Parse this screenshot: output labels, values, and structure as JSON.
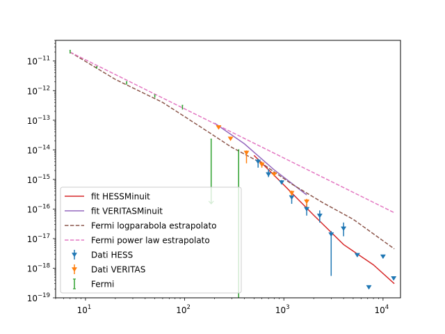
{
  "chart_data": {
    "type": "scatter",
    "title": "",
    "xlabel": "",
    "ylabel": "",
    "xscale": "log",
    "yscale": "log",
    "xlim": [
      5,
      15000
    ],
    "ylim": [
      1e-19,
      5e-11
    ],
    "x_ticks": [
      {
        "base": "10",
        "exp": "1"
      },
      {
        "base": "10",
        "exp": "2"
      },
      {
        "base": "10",
        "exp": "3"
      },
      {
        "base": "10",
        "exp": "4"
      }
    ],
    "y_ticks": [
      {
        "base": "10",
        "exp": "−11"
      },
      {
        "base": "10",
        "exp": "−12"
      },
      {
        "base": "10",
        "exp": "−13"
      },
      {
        "base": "10",
        "exp": "−14"
      },
      {
        "base": "10",
        "exp": "−15"
      },
      {
        "base": "10",
        "exp": "−16"
      },
      {
        "base": "10",
        "exp": "−17"
      },
      {
        "base": "10",
        "exp": "−18"
      },
      {
        "base": "10",
        "exp": "−19"
      }
    ],
    "grid": false,
    "legend_position": "lower-left",
    "lines": [
      {
        "name": "fit HESSMinuit",
        "color": "#d62728",
        "style": "solid",
        "points": [
          [
            500,
            6.5e-15
          ],
          [
            1000,
            6.5e-16
          ],
          [
            2000,
            6.2e-17
          ],
          [
            4000,
            6.3e-18
          ],
          [
            8000,
            1.3e-18
          ],
          [
            13000,
            3e-19
          ]
        ]
      },
      {
        "name": "fit VERITASMinuit",
        "color": "#9467bd",
        "style": "solid",
        "points": [
          [
            200,
            8e-14
          ],
          [
            400,
            1.6e-14
          ],
          [
            800,
            2.1e-15
          ],
          [
            1700,
            3e-16
          ]
        ]
      },
      {
        "name": "Fermi logparabola estrapolato",
        "color": "#8c564b",
        "style": "dashed",
        "points": [
          [
            7,
            2e-11
          ],
          [
            20,
            2.4e-12
          ],
          [
            60,
            4e-13
          ],
          [
            150,
            5.5e-14
          ],
          [
            300,
            1.2e-14
          ],
          [
            600,
            3.5e-15
          ],
          [
            1200,
            7e-16
          ],
          [
            2500,
            1.6e-16
          ],
          [
            5000,
            4.5e-17
          ],
          [
            13000,
            4.5e-18
          ]
        ]
      },
      {
        "name": "Fermi power law estrapolato",
        "color": "#e377c2",
        "style": "dashed",
        "points": [
          [
            7,
            2e-11
          ],
          [
            13000,
            7.5e-17
          ]
        ]
      }
    ],
    "series": [
      {
        "name": "Dati HESS",
        "color": "#1f77b4",
        "marker": "triangle-down",
        "points": [
          {
            "x": 550,
            "y": 4e-15,
            "ylo": 2.5e-15,
            "yhi": 5e-15
          },
          {
            "x": 700,
            "y": 1.5e-15,
            "ylo": 1.2e-15,
            "yhi": 2.2e-15
          },
          {
            "x": 950,
            "y": 8e-16,
            "ylo": 7e-16,
            "yhi": 9.5e-16
          },
          {
            "x": 1200,
            "y": 2.5e-16,
            "ylo": 1.5e-16,
            "yhi": 3.5e-16
          },
          {
            "x": 1700,
            "y": 1e-16,
            "ylo": 6e-17,
            "yhi": 1.5e-16
          },
          {
            "x": 2300,
            "y": 6e-17,
            "ylo": 3.5e-17,
            "yhi": 9e-17
          },
          {
            "x": 3000,
            "y": 1.4e-17,
            "ylo": 5.5e-19,
            "yhi": 1.8e-17
          },
          {
            "x": 4000,
            "y": 2.2e-17,
            "ylo": 1.2e-17,
            "yhi": 3.5e-17
          },
          {
            "x": 5500,
            "y": 2.8e-18
          },
          {
            "x": 7200,
            "y": 2.3e-19
          },
          {
            "x": 10000,
            "y": 2.5e-18
          },
          {
            "x": 12800,
            "y": 4.6e-19
          }
        ]
      },
      {
        "name": "Dati VERITAS",
        "color": "#ff7f0e",
        "marker": "triangle-down",
        "points": [
          {
            "x": 220,
            "y": 5.8e-14
          },
          {
            "x": 290,
            "y": 2.4e-14
          },
          {
            "x": 420,
            "y": 8e-15,
            "ylo": 3.5e-15,
            "yhi": 9.5e-15
          },
          {
            "x": 600,
            "y": 3.2e-15,
            "ylo": 2.5e-15,
            "yhi": 4e-15
          },
          {
            "x": 800,
            "y": 1.5e-15
          },
          {
            "x": 1200,
            "y": 3.5e-16,
            "ylo": 2.8e-16,
            "yhi": 4.2e-16
          },
          {
            "x": 1700,
            "y": 1.8e-16,
            "ylo": 1.2e-16,
            "yhi": 2.2e-16
          }
        ]
      },
      {
        "name": "Fermi",
        "color": "#2ca02c",
        "marker": "errorbar",
        "points": [
          {
            "x": 7,
            "y": 2e-11,
            "ylo": 1.8e-11,
            "yhi": 2.3e-11
          },
          {
            "x": 13,
            "y": 6e-12,
            "ylo": 5.5e-12,
            "yhi": 6.5e-12
          },
          {
            "x": 26,
            "y": 1.8e-12,
            "ylo": 1.6e-12,
            "yhi": 2e-12
          },
          {
            "x": 50,
            "y": 6.5e-13,
            "ylo": 5.8e-13,
            "yhi": 7.2e-13
          },
          {
            "x": 95,
            "y": 2.8e-13,
            "ylo": 2.3e-13,
            "yhi": 3.2e-13
          },
          {
            "x": 185,
            "y": 1.5e-16,
            "ylo": 1.5e-16,
            "yhi": 2.3e-14,
            "upper_limit": true
          },
          {
            "x": 350,
            "y": 1e-19,
            "ylo": 1e-19,
            "yhi": 1e-14
          }
        ]
      }
    ]
  }
}
